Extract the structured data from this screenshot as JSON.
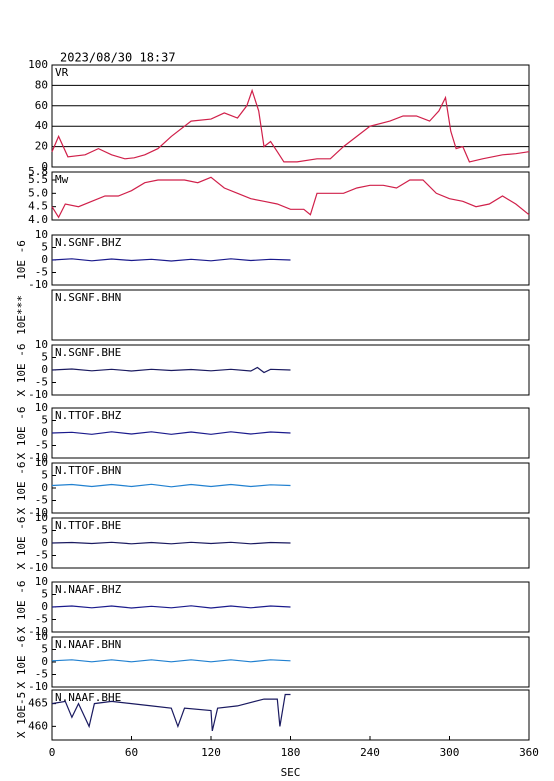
{
  "header": {
    "timestamp": "2023/08/30  18:37"
  },
  "chart_data": [
    {
      "type": "line",
      "title": "VR",
      "color": "#d0204a",
      "grid": true,
      "xlim": [
        0,
        360
      ],
      "ylim": [
        0,
        100
      ],
      "yticks": [
        0,
        20,
        40,
        60,
        80,
        100
      ],
      "x": [
        0,
        5,
        12,
        25,
        35,
        45,
        55,
        62,
        70,
        80,
        90,
        100,
        105,
        120,
        130,
        140,
        147,
        151,
        156,
        160,
        165,
        170,
        175,
        185,
        200,
        210,
        220,
        230,
        240,
        255,
        265,
        275,
        285,
        292,
        297,
        301,
        305,
        310,
        315,
        325,
        340,
        350,
        360
      ],
      "values": [
        15,
        30,
        10,
        12,
        18,
        12,
        8,
        9,
        12,
        18,
        30,
        40,
        45,
        47,
        53,
        48,
        60,
        75,
        55,
        20,
        25,
        15,
        5,
        5,
        8,
        8,
        20,
        30,
        40,
        45,
        50,
        50,
        45,
        55,
        68,
        35,
        18,
        20,
        5,
        8,
        12,
        13,
        15
      ]
    },
    {
      "type": "line",
      "title": "Mw",
      "color": "#d0204a",
      "xlim": [
        0,
        360
      ],
      "ylim": [
        4.0,
        5.8
      ],
      "yticks": [
        {
          "value": 4.0,
          "label": "4.0"
        },
        4.5,
        {
          "value": 5.0,
          "label": "5.0"
        },
        5.5,
        5.8
      ],
      "x": [
        0,
        5,
        10,
        20,
        30,
        40,
        50,
        60,
        70,
        80,
        90,
        100,
        110,
        120,
        130,
        140,
        150,
        160,
        170,
        180,
        190,
        195,
        200,
        210,
        220,
        230,
        240,
        250,
        260,
        270,
        280,
        290,
        300,
        310,
        320,
        330,
        340,
        350,
        360
      ],
      "values": [
        4.5,
        4.1,
        4.6,
        4.5,
        4.7,
        4.9,
        4.9,
        5.1,
        5.4,
        5.5,
        5.5,
        5.5,
        5.4,
        5.6,
        5.2,
        5.0,
        4.8,
        4.7,
        4.6,
        4.4,
        4.4,
        4.2,
        5.0,
        5.0,
        5.0,
        5.2,
        5.3,
        5.3,
        5.2,
        5.5,
        5.5,
        5.0,
        4.8,
        4.7,
        4.5,
        4.6,
        4.9,
        4.6,
        4.2
      ]
    },
    {
      "type": "line",
      "title": "N.SGNF.BHZ",
      "ylabel": "10E -6",
      "color": "#1a1a8c",
      "xlim": [
        0,
        360
      ],
      "ylim": [
        -10,
        10
      ],
      "yticks": [
        -10,
        -5,
        0,
        5,
        10
      ],
      "x": [
        0,
        15,
        30,
        45,
        60,
        75,
        90,
        105,
        120,
        135,
        150,
        165,
        180
      ],
      "values": [
        0,
        0.5,
        -0.3,
        0.4,
        -0.2,
        0.3,
        -0.4,
        0.3,
        -0.3,
        0.5,
        -0.2,
        0.3,
        0
      ]
    },
    {
      "type": "line",
      "title": "N.SGNF.BHN",
      "ylabel": "10E***",
      "color": "#2080d0",
      "xlim": [
        0,
        360
      ],
      "x": [],
      "values": []
    },
    {
      "type": "line",
      "title": "N.SGNF.BHE",
      "ylabel": "X 10E -6",
      "color": "#1a1a60",
      "xlim": [
        0,
        360
      ],
      "ylim": [
        -10,
        10
      ],
      "yticks": [
        -10,
        -5,
        0,
        5,
        10
      ],
      "x": [
        0,
        15,
        30,
        45,
        60,
        75,
        90,
        105,
        120,
        135,
        150,
        155,
        160,
        165,
        180
      ],
      "values": [
        0,
        0.4,
        -0.3,
        0.3,
        -0.4,
        0.3,
        -0.2,
        0.2,
        -0.3,
        0.3,
        -0.4,
        1,
        -1,
        0.3,
        0
      ]
    },
    {
      "type": "line",
      "title": "N.TTOF.BHZ",
      "ylabel": "X 10E -6",
      "color": "#1a1a8c",
      "xlim": [
        0,
        360
      ],
      "ylim": [
        -10,
        10
      ],
      "yticks": [
        -10,
        -5,
        0,
        5,
        10
      ],
      "x": [
        0,
        15,
        30,
        45,
        60,
        75,
        90,
        105,
        120,
        135,
        150,
        165,
        180
      ],
      "values": [
        0,
        0.3,
        -0.5,
        0.5,
        -0.4,
        0.5,
        -0.5,
        0.4,
        -0.5,
        0.5,
        -0.4,
        0.4,
        0
      ]
    },
    {
      "type": "line",
      "title": "N.TTOF.BHN",
      "ylabel": "X 10E -6",
      "color": "#2080d0",
      "xlim": [
        0,
        360
      ],
      "ylim": [
        -10,
        10
      ],
      "yticks": [
        -10,
        -5,
        0,
        5,
        10
      ],
      "x": [
        0,
        15,
        30,
        45,
        60,
        75,
        90,
        105,
        120,
        135,
        150,
        165,
        180
      ],
      "values": [
        1,
        1.4,
        0.6,
        1.4,
        0.6,
        1.5,
        0.5,
        1.4,
        0.6,
        1.4,
        0.6,
        1.3,
        1
      ]
    },
    {
      "type": "line",
      "title": "N.TTOF.BHE",
      "ylabel": "X 10E -6",
      "color": "#1a1a60",
      "xlim": [
        0,
        360
      ],
      "ylim": [
        -10,
        10
      ],
      "yticks": [
        -10,
        -5,
        0,
        5,
        10
      ],
      "x": [
        0,
        15,
        30,
        45,
        60,
        75,
        90,
        105,
        120,
        135,
        150,
        165,
        180
      ],
      "values": [
        0,
        0.2,
        -0.2,
        0.3,
        -0.3,
        0.2,
        -0.3,
        0.3,
        -0.2,
        0.3,
        -0.3,
        0.2,
        0
      ]
    },
    {
      "type": "line",
      "title": "N.NAAF.BHZ",
      "ylabel": "X 10E -6",
      "color": "#1a1a8c",
      "xlim": [
        0,
        360
      ],
      "ylim": [
        -10,
        10
      ],
      "yticks": [
        -10,
        -5,
        0,
        5,
        10
      ],
      "x": [
        0,
        15,
        30,
        45,
        60,
        75,
        90,
        105,
        120,
        135,
        150,
        165,
        180
      ],
      "values": [
        0,
        0.4,
        -0.3,
        0.4,
        -0.4,
        0.3,
        -0.3,
        0.5,
        -0.4,
        0.4,
        -0.3,
        0.4,
        0
      ]
    },
    {
      "type": "line",
      "title": "N.NAAF.BHN",
      "ylabel": "X 10E -6",
      "color": "#2080d0",
      "xlim": [
        0,
        360
      ],
      "ylim": [
        -10,
        10
      ],
      "yticks": [
        -10,
        -5,
        0,
        5,
        10
      ],
      "x": [
        0,
        15,
        30,
        45,
        60,
        75,
        90,
        105,
        120,
        135,
        150,
        165,
        180
      ],
      "values": [
        0.5,
        0.9,
        0.1,
        0.9,
        0.1,
        0.9,
        0.1,
        0.9,
        0.1,
        0.9,
        0.1,
        0.9,
        0.5
      ]
    },
    {
      "type": "line",
      "title": "N.NAAF.BHE",
      "ylabel": "X 10E-5",
      "color": "#1a1a60",
      "xlim": [
        0,
        360
      ],
      "ylim": [
        457,
        468
      ],
      "yticks": [
        460,
        465
      ],
      "xticks": [
        0,
        60,
        120,
        180,
        240,
        300,
        360
      ],
      "xlabel": "SEC",
      "x": [
        0,
        10,
        15,
        20,
        28,
        32,
        45,
        60,
        75,
        90,
        95,
        100,
        120,
        121,
        125,
        140,
        160,
        170,
        172,
        176,
        180
      ],
      "values": [
        465,
        465.5,
        462,
        465,
        460,
        465,
        465.5,
        465,
        464.5,
        464,
        460,
        464,
        463.5,
        459,
        464,
        464.5,
        466,
        466,
        460,
        467,
        467
      ]
    }
  ]
}
